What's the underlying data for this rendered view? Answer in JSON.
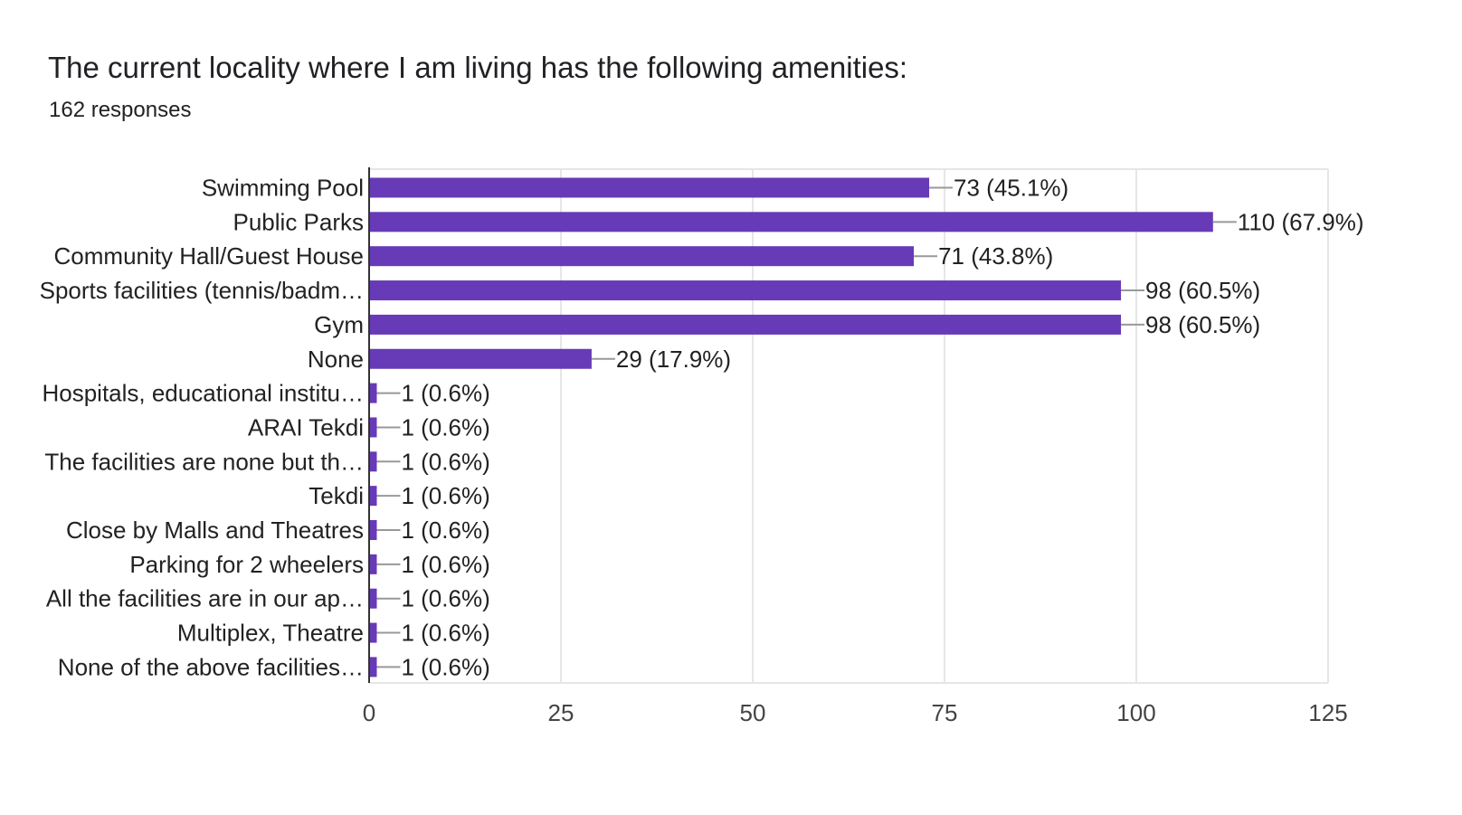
{
  "title": "The current locality where I am living has the following amenities:",
  "subtitle": "162 responses",
  "colors": {
    "bar": "#673ab7",
    "grid": "#e6e6e6",
    "axis": "#333333",
    "leader": "#999999"
  },
  "chart_data": {
    "type": "bar",
    "orientation": "horizontal",
    "categories": [
      "Swimming Pool",
      "Public Parks",
      "Community Hall/Guest House",
      "Sports facilities (tennis/badm…",
      "Gym",
      "None",
      "Hospitals, educational institu…",
      "ARAI Tekdi",
      "The facilities are none but th…",
      "Tekdi",
      "Close by Malls and Theatres",
      "Parking for 2 wheelers",
      "All the facilities are in our ap…",
      "Multiplex, Theatre",
      "None of the above facilities…"
    ],
    "values": [
      73,
      110,
      71,
      98,
      98,
      29,
      1,
      1,
      1,
      1,
      1,
      1,
      1,
      1,
      1
    ],
    "value_labels": [
      "73 (45.1%)",
      "110 (67.9%)",
      "71 (43.8%)",
      "98 (60.5%)",
      "98 (60.5%)",
      "29 (17.9%)",
      "1 (0.6%)",
      "1 (0.6%)",
      "1 (0.6%)",
      "1 (0.6%)",
      "1 (0.6%)",
      "1 (0.6%)",
      "1 (0.6%)",
      "1 (0.6%)",
      "1 (0.6%)"
    ],
    "xlim": [
      0,
      125
    ],
    "xticks": [
      0,
      25,
      50,
      75,
      100,
      125
    ],
    "grid": true,
    "legend": "none"
  }
}
